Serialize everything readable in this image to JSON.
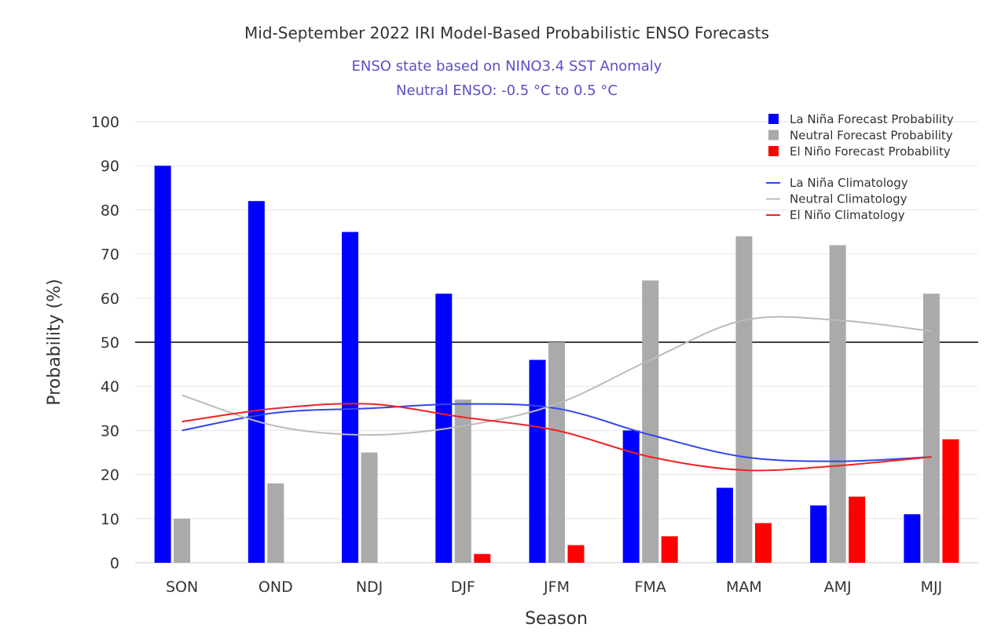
{
  "chart_data": {
    "type": "bar",
    "title": "Mid-September 2022 IRI Model-Based Probabilistic ENSO Forecasts",
    "subtitle_lines": [
      "ENSO state based on NINO3.4 SST Anomaly",
      "Neutral ENSO: -0.5 °C to 0.5 °C"
    ],
    "xlabel": "Season",
    "ylabel": "Probability (%)",
    "ylim": [
      0,
      100
    ],
    "yticks": [
      0,
      10,
      20,
      30,
      40,
      50,
      60,
      70,
      80,
      90,
      100
    ],
    "reference_line": 50,
    "categories": [
      "SON",
      "OND",
      "NDJ",
      "DJF",
      "JFM",
      "FMA",
      "MAM",
      "AMJ",
      "MJJ"
    ],
    "series": [
      {
        "name": "La Niña Forecast Probability",
        "color": "#0000ff",
        "values": [
          90,
          82,
          75,
          61,
          46,
          30,
          17,
          13,
          11
        ]
      },
      {
        "name": "Neutral Forecast Probability",
        "color": "#aaaaaa",
        "values": [
          10,
          18,
          25,
          37,
          50,
          64,
          74,
          72,
          61
        ]
      },
      {
        "name": "El Niño Forecast Probability",
        "color": "#ff0000",
        "values": [
          0,
          0,
          0,
          2,
          4,
          6,
          9,
          15,
          28
        ]
      }
    ],
    "climatology": [
      {
        "name": "La Niña Climatology",
        "color": "#3344ee",
        "values": [
          30,
          34,
          35,
          36,
          35,
          29,
          24,
          23,
          24
        ]
      },
      {
        "name": "Neutral Climatology",
        "color": "#bbbbbb",
        "values": [
          38,
          31,
          29,
          31,
          36,
          46,
          55,
          55,
          52.5
        ]
      },
      {
        "name": "El Niño Climatology",
        "color": "#ee2222",
        "values": [
          32,
          35,
          36,
          33,
          30,
          24,
          21,
          22,
          24
        ]
      }
    ]
  }
}
